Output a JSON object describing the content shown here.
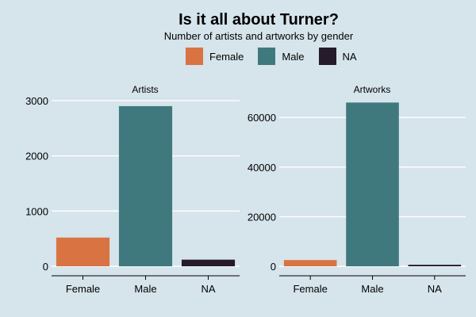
{
  "title": "Is it all about Turner?",
  "subtitle": "Number of artists and artworks by gender",
  "colors": {
    "Female": "#d97342",
    "Male": "#3f797d",
    "NA": "#251b2a",
    "background": "#d6e4eb",
    "gridline": "#ffffff"
  },
  "legend": [
    {
      "name": "Female",
      "color": "#d97342"
    },
    {
      "name": "Male",
      "color": "#3f797d"
    },
    {
      "name": "NA",
      "color": "#251b2a"
    }
  ],
  "chart_data": [
    {
      "type": "bar",
      "facet": "Artists",
      "categories": [
        "Female",
        "Male",
        "NA"
      ],
      "values": [
        520,
        2900,
        120
      ],
      "yticks": [
        0,
        1000,
        2000,
        3000
      ],
      "ylim": [
        0,
        3100
      ],
      "grid": true
    },
    {
      "type": "bar",
      "facet": "Artworks",
      "categories": [
        "Female",
        "Male",
        "NA"
      ],
      "values": [
        2500,
        66000,
        600
      ],
      "yticks": [
        0,
        20000,
        40000,
        60000
      ],
      "ylim": [
        0,
        69000
      ],
      "grid": true
    }
  ]
}
